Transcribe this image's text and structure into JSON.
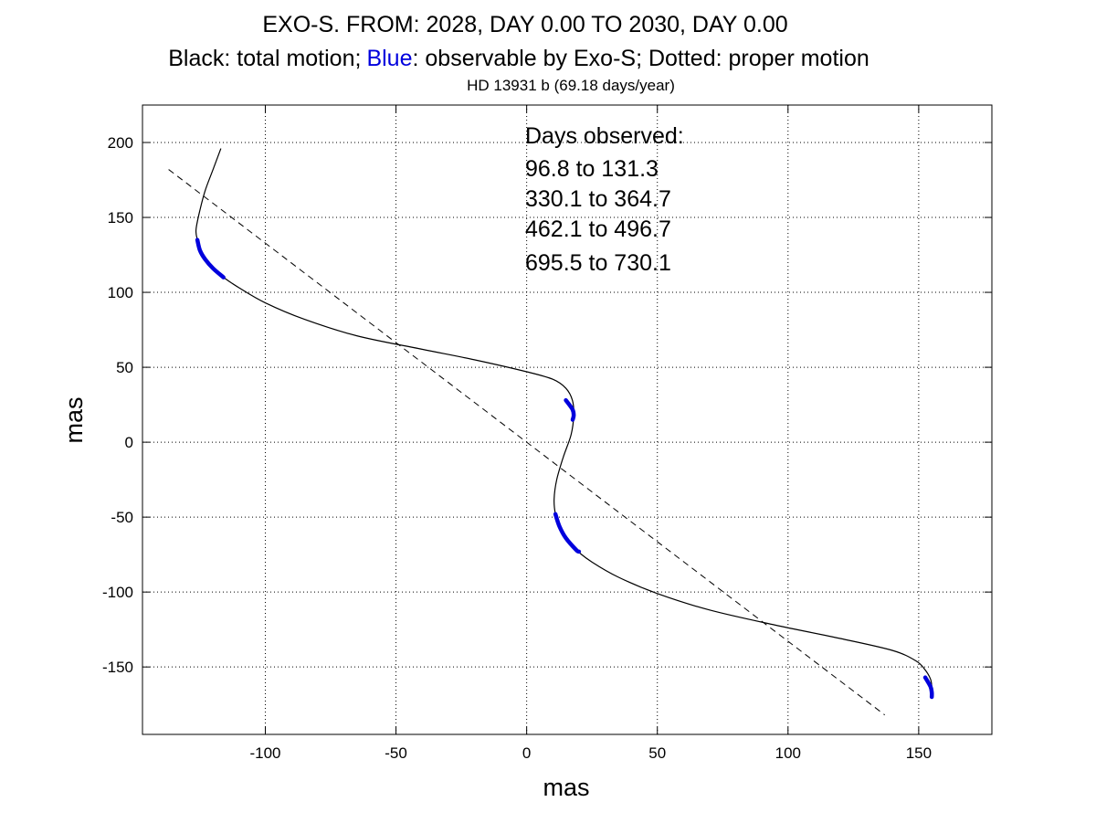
{
  "chart_data": {
    "type": "line",
    "title": "EXO-S. FROM: 2028, DAY 0.00 TO 2030, DAY 0.00",
    "subtitle_parts": [
      "Black: total motion;",
      "Blue",
      ": observable by Exo-S; Dotted: proper motion"
    ],
    "sub_subtitle": "HD 13931 b (69.18 days/year)",
    "xlabel": "mas",
    "ylabel": "mas",
    "xlim": [
      -147,
      178
    ],
    "ylim": [
      -195,
      225
    ],
    "xticks": [
      -100,
      -50,
      0,
      50,
      100,
      150
    ],
    "yticks": [
      -150,
      -100,
      -50,
      0,
      50,
      100,
      150,
      200
    ],
    "grid": true,
    "colors": {
      "total": "#000000",
      "observable": "#0000dd",
      "proper": "#000000",
      "blue_word": "#0000dd"
    },
    "annotation": {
      "heading": "Days observed:",
      "lines": [
        "96.8 to 131.3",
        "330.1 to 364.7",
        "462.1 to 496.7",
        "695.5 to 730.1"
      ]
    },
    "series": [
      {
        "role": "total motion",
        "x": [
          -117,
          -120,
          -123,
          -125,
          -126.5,
          -126,
          -125,
          -123,
          -120,
          -116,
          -110,
          -100,
          -85,
          -65,
          -40,
          -20,
          0,
          10,
          15,
          17.5,
          18,
          17,
          14,
          11.5,
          10.5,
          11,
          12.5,
          15,
          19,
          25,
          35,
          50,
          70,
          95,
          120,
          140,
          149,
          152.5,
          154.5,
          155,
          155,
          155
        ],
        "y": [
          196,
          182,
          168,
          155,
          142,
          135,
          128,
          122,
          116,
          110,
          103,
          93,
          82,
          71,
          62,
          55,
          47,
          42,
          36,
          28,
          18,
          5,
          -10,
          -25,
          -38,
          -48,
          -56,
          -64,
          -72,
          -80,
          -90,
          -101,
          -112,
          -122,
          -131,
          -139,
          -146,
          -152,
          -158,
          -163,
          -167,
          -170
        ]
      },
      {
        "role": "observable",
        "segments": [
          {
            "x": [
              -126,
              -125,
              -123,
              -120,
              -116
            ],
            "y": [
              135,
              128,
              122,
              116,
              110
            ]
          },
          {
            "x": [
              15,
              17.5,
              18,
              17.6
            ],
            "y": [
              28,
              22,
              18,
              15
            ]
          },
          {
            "x": [
              11,
              12.5,
              15,
              19,
              20
            ],
            "y": [
              -48,
              -56,
              -64,
              -72,
              -73
            ]
          },
          {
            "x": [
              152.5,
              154.5,
              155,
              155
            ],
            "y": [
              -157,
              -163,
              -167,
              -170
            ]
          }
        ]
      },
      {
        "role": "proper motion",
        "x": [
          -137,
          137
        ],
        "y": [
          182,
          -182
        ]
      }
    ]
  }
}
